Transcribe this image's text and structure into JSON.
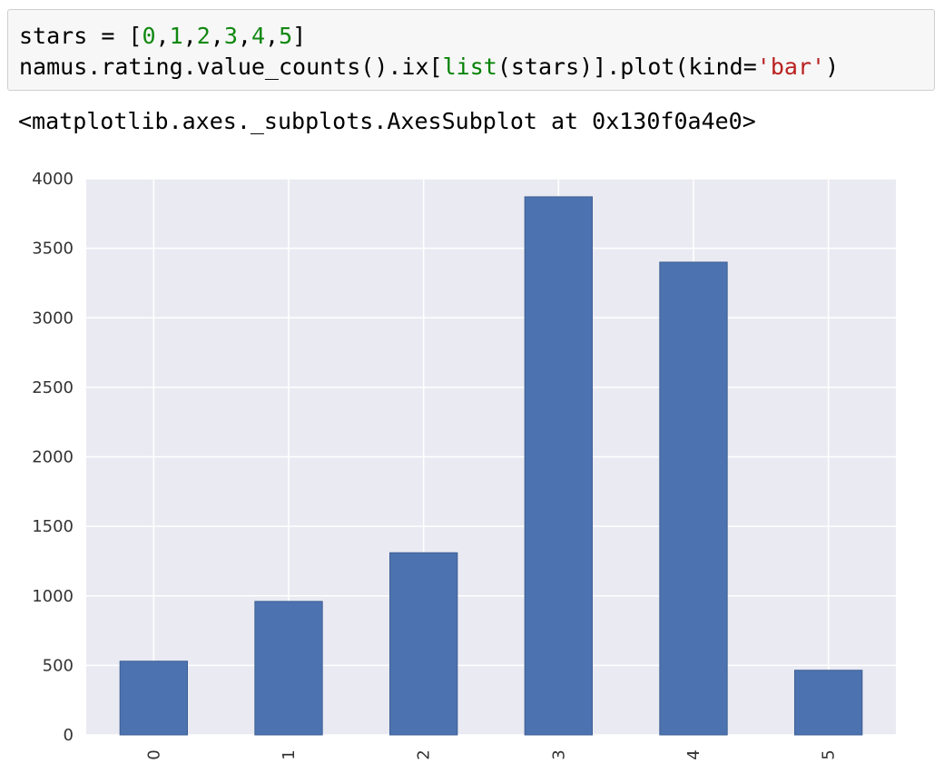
{
  "cell": {
    "line1": {
      "var": "stars",
      "op": " = ",
      "open": "[",
      "items": [
        "0",
        "1",
        "2",
        "3",
        "4",
        "5"
      ],
      "close": "]"
    },
    "line2": {
      "pre": "namus.rating.value_counts().ix[",
      "builtin": "list",
      "mid": "(stars)].plot(kind=",
      "str": "'bar'",
      "post": ")"
    }
  },
  "output": {
    "text": "<matplotlib.axes._subplots.AxesSubplot at 0x130f0a4e0>"
  },
  "chart_data": {
    "type": "bar",
    "categories": [
      "0",
      "1",
      "2",
      "3",
      "4",
      "5"
    ],
    "values": [
      530,
      960,
      1310,
      3870,
      3400,
      465
    ],
    "yticks": [
      "0",
      "500",
      "1000",
      "1500",
      "2000",
      "2500",
      "3000",
      "3500",
      "4000"
    ],
    "ylim": [
      0,
      4000
    ],
    "grid": true,
    "colors": {
      "bar": "#4c72b0",
      "background": "#eaeaf2",
      "grid": "#ffffff"
    }
  }
}
